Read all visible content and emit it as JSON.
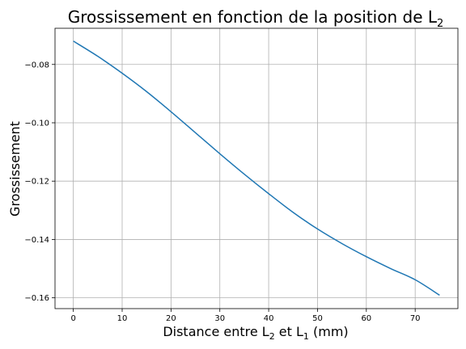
{
  "chart_data": {
    "type": "line",
    "title": "Grossissement en fonction de la position de L",
    "title_sub": "2",
    "xlabel_parts": [
      "Distance entre L",
      "2",
      " et L",
      "1",
      " (mm)"
    ],
    "ylabel": "Grossissement",
    "xlim": [
      -3.75,
      78.75
    ],
    "ylim": [
      -0.1637,
      -0.0676
    ],
    "x_ticks": [
      0,
      10,
      20,
      30,
      40,
      50,
      60,
      70
    ],
    "x_tick_labels": [
      "0",
      "10",
      "20",
      "30",
      "40",
      "50",
      "60",
      "70"
    ],
    "y_ticks": [
      -0.16,
      -0.14,
      -0.12,
      -0.1,
      -0.08
    ],
    "y_tick_labels": [
      "−0.16",
      "−0.14",
      "−0.12",
      "−0.10",
      "−0.08"
    ],
    "grid": true,
    "series": [
      {
        "color": "#1f77b4",
        "x": [
          0,
          5,
          10,
          15,
          20,
          25,
          30,
          35,
          40,
          45,
          50,
          55,
          60,
          65,
          70,
          75
        ],
        "y": [
          -0.072,
          -0.0772,
          -0.083,
          -0.0893,
          -0.0962,
          -0.1034,
          -0.1106,
          -0.1176,
          -0.1243,
          -0.1307,
          -0.1364,
          -0.1414,
          -0.1459,
          -0.15,
          -0.1538,
          -0.1591
        ]
      }
    ]
  }
}
